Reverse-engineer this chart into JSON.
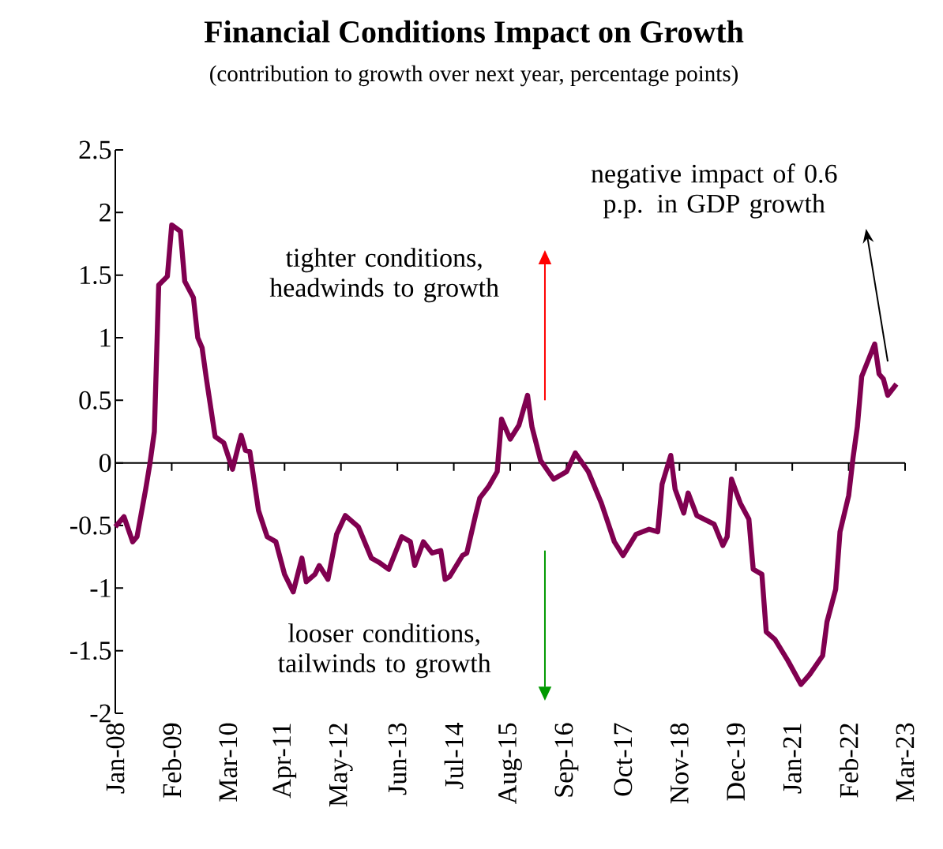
{
  "chart_data": {
    "type": "line",
    "title": "Financial Conditions Impact on Growth",
    "subtitle": "(contribution to growth over next year, percentage points)",
    "x": [
      "2008-01",
      "2008-03",
      "2008-05",
      "2008-06",
      "2008-08",
      "2008-09",
      "2008-10",
      "2008-11",
      "2009-01",
      "2009-02",
      "2009-04",
      "2009-05",
      "2009-07",
      "2009-08",
      "2009-09",
      "2009-10",
      "2009-12",
      "2010-02",
      "2010-04",
      "2010-06",
      "2010-07",
      "2010-08",
      "2010-10",
      "2010-12",
      "2011-02",
      "2011-04",
      "2011-06",
      "2011-08",
      "2011-09",
      "2011-11",
      "2011-12",
      "2012-02",
      "2012-04",
      "2012-06",
      "2012-09",
      "2012-12",
      "2013-02",
      "2013-04",
      "2013-07",
      "2013-09",
      "2013-10",
      "2013-12",
      "2014-02",
      "2014-04",
      "2014-05",
      "2014-06",
      "2014-09",
      "2014-10",
      "2014-12",
      "2015-01",
      "2015-03",
      "2015-05",
      "2015-06",
      "2015-08",
      "2015-10",
      "2015-12",
      "2016-01",
      "2016-03",
      "2016-06",
      "2016-09",
      "2016-11",
      "2017-02",
      "2017-05",
      "2017-08",
      "2017-10",
      "2018-01",
      "2018-04",
      "2018-06",
      "2018-07",
      "2018-09",
      "2018-10",
      "2018-12",
      "2019-01",
      "2019-03",
      "2019-07",
      "2019-09",
      "2019-10",
      "2019-11",
      "2020-01",
      "2020-03",
      "2020-04",
      "2020-06",
      "2020-07",
      "2020-09",
      "2020-12",
      "2021-03",
      "2021-05",
      "2021-08",
      "2021-09",
      "2021-11",
      "2021-12",
      "2022-02",
      "2022-03",
      "2022-04",
      "2022-05",
      "2022-08",
      "2022-09",
      "2022-10",
      "2022-11",
      "2023-01"
    ],
    "series": [
      {
        "color": "#800050",
        "values": [
          -0.51,
          -0.43,
          -0.63,
          -0.59,
          -0.21,
          0.0,
          0.25,
          1.42,
          1.49,
          1.9,
          1.85,
          1.45,
          1.32,
          1.0,
          0.92,
          0.67,
          0.21,
          0.16,
          -0.05,
          0.22,
          0.1,
          0.09,
          -0.38,
          -0.59,
          -0.63,
          -0.89,
          -1.03,
          -0.76,
          -0.95,
          -0.89,
          -0.82,
          -0.93,
          -0.57,
          -0.42,
          -0.51,
          -0.76,
          -0.8,
          -0.85,
          -0.59,
          -0.63,
          -0.82,
          -0.63,
          -0.72,
          -0.7,
          -0.93,
          -0.91,
          -0.74,
          -0.72,
          -0.42,
          -0.28,
          -0.19,
          -0.07,
          0.35,
          0.19,
          0.3,
          0.54,
          0.29,
          0.02,
          -0.13,
          -0.07,
          0.08,
          -0.07,
          -0.32,
          -0.63,
          -0.74,
          -0.57,
          -0.53,
          -0.55,
          -0.17,
          0.06,
          -0.21,
          -0.4,
          -0.24,
          -0.42,
          -0.49,
          -0.66,
          -0.59,
          -0.13,
          -0.32,
          -0.45,
          -0.85,
          -0.89,
          -1.35,
          -1.41,
          -1.58,
          -1.77,
          -1.69,
          -1.54,
          -1.27,
          -1.01,
          -0.55,
          -0.26,
          0.04,
          0.29,
          0.69,
          0.95,
          0.71,
          0.67,
          0.54,
          0.63
        ]
      }
    ],
    "xlim": [
      "2008-01",
      "2023-03"
    ],
    "xticks": [
      {
        "value": "2008-01",
        "label": "Jan-08"
      },
      {
        "value": "2009-02",
        "label": "Feb-09"
      },
      {
        "value": "2010-03",
        "label": "Mar-10"
      },
      {
        "value": "2011-04",
        "label": "Apr-11"
      },
      {
        "value": "2012-05",
        "label": "May-12"
      },
      {
        "value": "2013-06",
        "label": "Jun-13"
      },
      {
        "value": "2014-07",
        "label": "Jul-14"
      },
      {
        "value": "2015-08",
        "label": "Aug-15"
      },
      {
        "value": "2016-09",
        "label": "Sep-16"
      },
      {
        "value": "2017-10",
        "label": "Oct-17"
      },
      {
        "value": "2018-11",
        "label": "Nov-18"
      },
      {
        "value": "2019-12",
        "label": "Dec-19"
      },
      {
        "value": "2021-01",
        "label": "Jan-21"
      },
      {
        "value": "2022-02",
        "label": "Feb-22"
      },
      {
        "value": "2023-03",
        "label": "Mar-23"
      }
    ],
    "ylim": [
      -2,
      2.5
    ],
    "yticks": [
      -2,
      -1.5,
      -1,
      -0.5,
      0,
      0.5,
      1,
      1.5,
      2,
      2.5
    ],
    "annotations": [
      "tighter conditions, headwinds to growth",
      "looser conditions, tailwinds to growth",
      "negative impact of 0.6 p.p. in GDP growth"
    ]
  }
}
